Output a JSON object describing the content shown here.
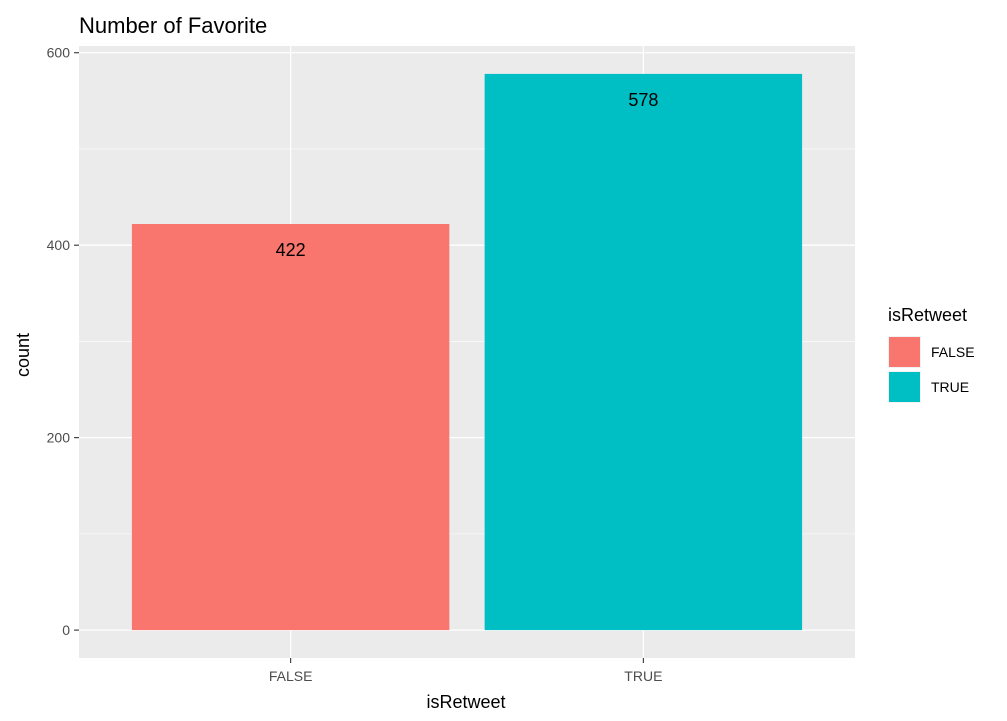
{
  "chart_data": {
    "type": "bar",
    "title": "Number of Favorite",
    "xlabel": "isRetweet",
    "ylabel": "count",
    "categories": [
      "FALSE",
      "TRUE"
    ],
    "values": [
      422,
      578
    ],
    "bar_labels": [
      "422",
      "578"
    ],
    "colors": [
      "#F8766D",
      "#00BFC4"
    ],
    "ylim": [
      -29,
      607
    ],
    "yticks": [
      0,
      200,
      400,
      600
    ],
    "ytick_labels": [
      "0",
      "200",
      "400",
      "600"
    ],
    "grid": true,
    "panel_background": "#EBEBEB",
    "legend": {
      "title": "isRetweet",
      "placement": "right",
      "entries": [
        {
          "label": "FALSE",
          "color": "#F8766D"
        },
        {
          "label": "TRUE",
          "color": "#00BFC4"
        }
      ]
    }
  }
}
